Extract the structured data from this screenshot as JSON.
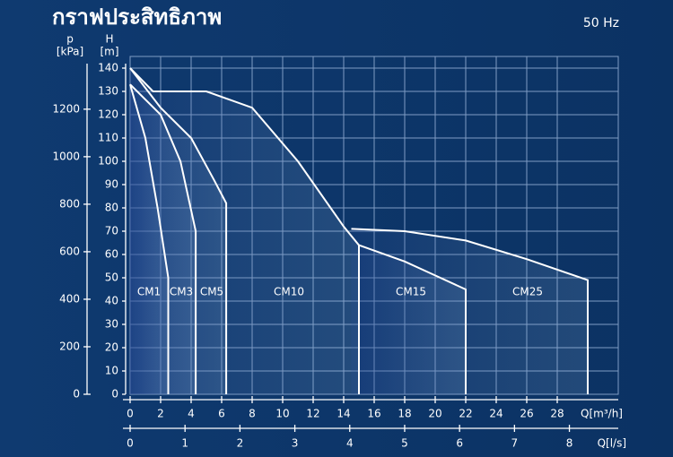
{
  "chart_data": {
    "type": "line",
    "title": "กราฟประสิทธิภาพ",
    "subtitle": "50 Hz",
    "y_label": "H",
    "y_unit": "[m]",
    "y2_label": "p",
    "y2_unit": "[kPa]",
    "x_label": "Q[m³/h]",
    "x2_label": "Q[l/s]",
    "xlim": [
      0,
      32
    ],
    "xticks": [
      0,
      2,
      4,
      6,
      8,
      10,
      12,
      14,
      16,
      18,
      20,
      22,
      24,
      26,
      28
    ],
    "x2lim": [
      0,
      8.89
    ],
    "x2ticks": [
      0,
      1,
      2,
      3,
      4,
      5,
      6,
      7,
      8
    ],
    "ylim": [
      0,
      145
    ],
    "yticks": [
      0,
      10,
      20,
      30,
      40,
      50,
      60,
      70,
      80,
      90,
      100,
      110,
      120,
      130,
      140
    ],
    "y2lim": [
      0,
      1422
    ],
    "y2ticks": [
      0,
      200,
      400,
      600,
      800,
      1000,
      1200
    ],
    "grid": true,
    "series": [
      {
        "name": "CM1",
        "color": "#ffffff",
        "x": [
          0,
          1,
          1.8,
          2.5,
          2.5
        ],
        "values": [
          133,
          110,
          80,
          50,
          0
        ]
      },
      {
        "name": "CM3",
        "color": "#ffffff",
        "x": [
          0,
          2,
          3.3,
          4.3,
          4.3
        ],
        "values": [
          133,
          120,
          100,
          70,
          0
        ]
      },
      {
        "name": "CM5",
        "color": "#ffffff",
        "x": [
          0,
          2,
          4,
          5.5,
          6.3,
          6.3
        ],
        "values": [
          140,
          123,
          110,
          92,
          82,
          0
        ]
      },
      {
        "name": "CM10",
        "color": "#ffffff",
        "x": [
          0,
          1.5,
          5,
          8,
          11,
          14,
          15,
          15
        ],
        "values": [
          140,
          130,
          130,
          123,
          100,
          72,
          64,
          0
        ]
      },
      {
        "name": "CM15",
        "color": "#ffffff",
        "x": [
          15,
          18,
          20,
          22,
          22
        ],
        "values": [
          64,
          57,
          51,
          45,
          0
        ]
      },
      {
        "name": "CM25",
        "color": "#ffffff",
        "x": [
          14.5,
          18,
          22,
          26,
          30,
          30
        ],
        "values": [
          71,
          70,
          66,
          58,
          49,
          0
        ]
      }
    ]
  }
}
